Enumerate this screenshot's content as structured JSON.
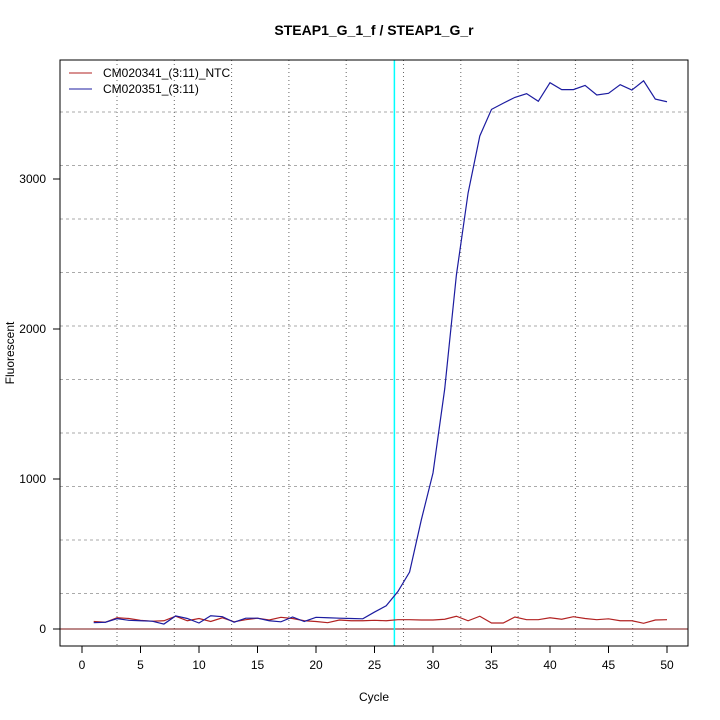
{
  "chart_data": {
    "type": "line",
    "title": "STEAP1_G_1_f / STEAP1_G_r",
    "xlabel": "Cycle",
    "ylabel": "Fluorescent",
    "xlim": [
      -2,
      52
    ],
    "ylim": [
      -113,
      3793
    ],
    "xticks": [
      0,
      5,
      10,
      15,
      20,
      25,
      30,
      35,
      40,
      45,
      50
    ],
    "yticks": [
      0,
      1000,
      2000,
      3000
    ],
    "grid": true,
    "legend": "top-left",
    "threshold_cycle": 26.7,
    "threshold_color": "#00FFFF",
    "x": [
      1,
      2,
      3,
      4,
      5,
      6,
      7,
      8,
      9,
      10,
      11,
      12,
      13,
      14,
      15,
      16,
      17,
      18,
      19,
      20,
      21,
      22,
      23,
      24,
      25,
      26,
      27,
      28,
      29,
      30,
      31,
      32,
      33,
      34,
      35,
      36,
      37,
      38,
      39,
      40,
      41,
      42,
      43,
      44,
      45,
      46,
      47,
      48,
      49,
      50
    ],
    "series": [
      {
        "name": "CM020341_(3:11)_NTC",
        "color": "#B22222",
        "values": [
          50,
          45,
          75,
          70,
          58,
          52,
          55,
          85,
          55,
          70,
          50,
          75,
          48,
          62,
          72,
          60,
          78,
          70,
          55,
          50,
          42,
          60,
          55,
          55,
          58,
          55,
          62,
          62,
          60,
          60,
          65,
          85,
          55,
          85,
          40,
          40,
          80,
          62,
          62,
          75,
          65,
          82,
          70,
          62,
          68,
          55,
          55,
          38,
          60,
          62
        ]
      },
      {
        "name": "CM020351_(3:11)",
        "color": "#1C1CA0",
        "values": [
          42,
          45,
          69,
          58,
          55,
          52,
          33,
          87,
          70,
          40,
          88,
          82,
          45,
          72,
          72,
          55,
          48,
          80,
          50,
          78,
          75,
          72,
          70,
          68,
          113,
          155,
          250,
          380,
          727,
          1040,
          1600,
          2360,
          2907,
          3287,
          3464,
          3505,
          3544,
          3569,
          3518,
          3642,
          3596,
          3596,
          3624,
          3560,
          3571,
          3629,
          3593,
          3655,
          3533,
          3515
        ]
      }
    ]
  }
}
